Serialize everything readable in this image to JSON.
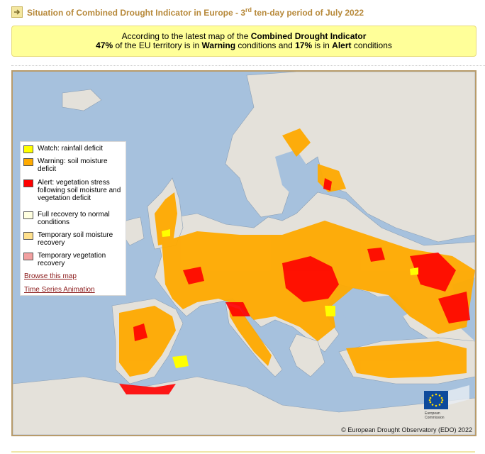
{
  "header": {
    "title_prefix": "Situation of Combined Drought Indicator in Europe - 3",
    "title_sup": "rd",
    "title_suffix": " ten-day period of July 2022"
  },
  "info": {
    "line1_prefix": "According to the latest map of the ",
    "line1_bold": "Combined Drought Indicator",
    "warning_pct": "47%",
    "line2_mid1": " of the EU territory is in ",
    "warning_word": "Warning",
    "line2_mid2": " conditions and ",
    "alert_pct": "17%",
    "line2_mid3": " is in ",
    "alert_word": "Alert",
    "line2_end": " conditions"
  },
  "legend": {
    "items": [
      {
        "label": "Watch: rainfall deficit",
        "color": "#ffff00"
      },
      {
        "label": "Warning: soil moisture deficit",
        "color": "#ffaa00"
      },
      {
        "label": "Alert: vegetation stress following soil moisture and vegetation deficit",
        "color": "#ff0000"
      },
      {
        "label": "Full recovery to normal conditions",
        "color": "#ffffe0"
      },
      {
        "label": "Temporary soil moisture recovery",
        "color": "#ffe08c"
      },
      {
        "label": "Temporary vegetation recovery",
        "color": "#f2a0a0"
      }
    ],
    "browse_link": "Browse this map",
    "animation_link": "Time Series Animation"
  },
  "map": {
    "sea_color": "#a6c1dd",
    "land_color": "#e4e1da",
    "copyright": "© European Drought Observatory (EDO) 2022",
    "logo_caption_1": "European",
    "logo_caption_2": "Commission"
  }
}
